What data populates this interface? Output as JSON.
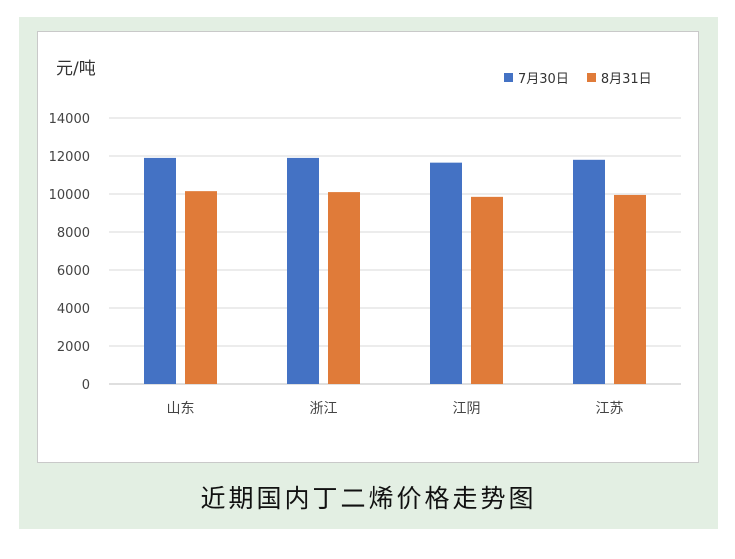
{
  "chart_data": {
    "type": "bar",
    "title": "近期国内丁二烯价格走势图",
    "ylabel": "元/吨",
    "categories": [
      "山东",
      "浙江",
      "江阴",
      "江苏"
    ],
    "series": [
      {
        "name": "7月30日",
        "color": "#4472c4",
        "values": [
          11900,
          11900,
          11650,
          11800
        ]
      },
      {
        "name": "8月31日",
        "color": "#e07b39",
        "values": [
          10150,
          10100,
          9850,
          9950
        ]
      }
    ],
    "ylim": [
      0,
      14000
    ],
    "yticks": [
      0,
      2000,
      4000,
      6000,
      8000,
      10000,
      12000,
      14000
    ],
    "grid": true,
    "legend": "top-right"
  }
}
